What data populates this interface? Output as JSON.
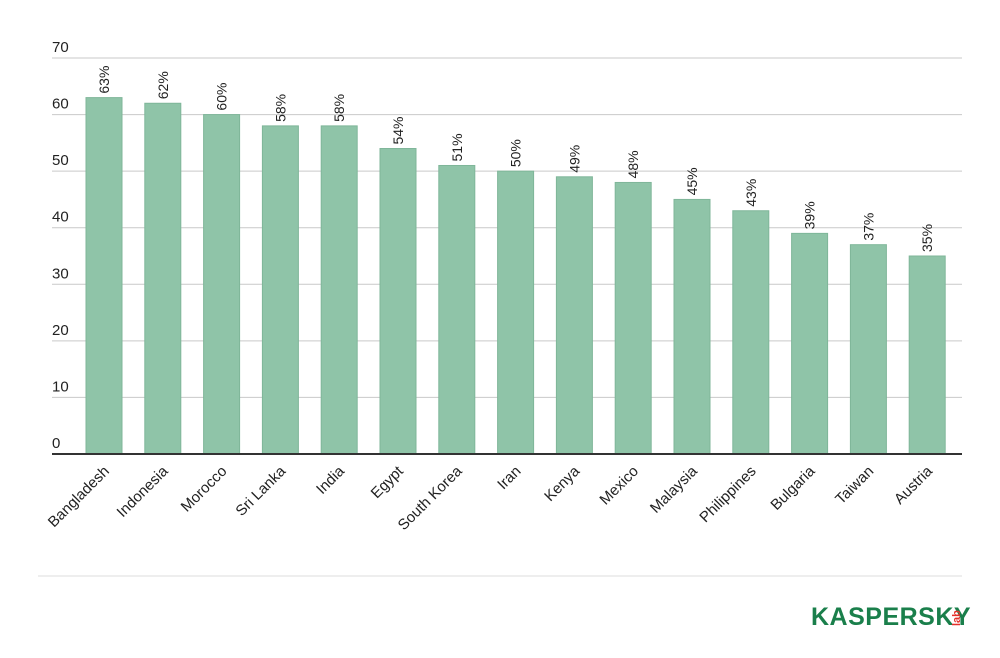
{
  "chart_data": {
    "type": "bar",
    "categories": [
      "Bangladesh",
      "Indonesia",
      "Morocco",
      "Sri Lanka",
      "India",
      "Egypt",
      "South Korea",
      "Iran",
      "Kenya",
      "Mexico",
      "Malaysia",
      "Philippines",
      "Bulgaria",
      "Taiwan",
      "Austria"
    ],
    "values": [
      63,
      62,
      60,
      58,
      58,
      54,
      51,
      50,
      49,
      48,
      45,
      43,
      39,
      37,
      35
    ],
    "data_labels": [
      "63%",
      "62%",
      "60%",
      "58%",
      "58%",
      "54%",
      "51%",
      "50%",
      "49%",
      "48%",
      "45%",
      "43%",
      "39%",
      "37%",
      "35%"
    ],
    "yticks": [
      "0",
      "10",
      "20",
      "30",
      "40",
      "50",
      "60",
      "70"
    ],
    "ylim": [
      0,
      70
    ],
    "grid": true,
    "bar_color": "#8fc4a8",
    "legend": "none"
  },
  "branding": {
    "logo_main": "KASPERSKY",
    "logo_suffix": "lab",
    "logo_color": "#1a7f4b",
    "logo_accent": "#e4312b"
  }
}
